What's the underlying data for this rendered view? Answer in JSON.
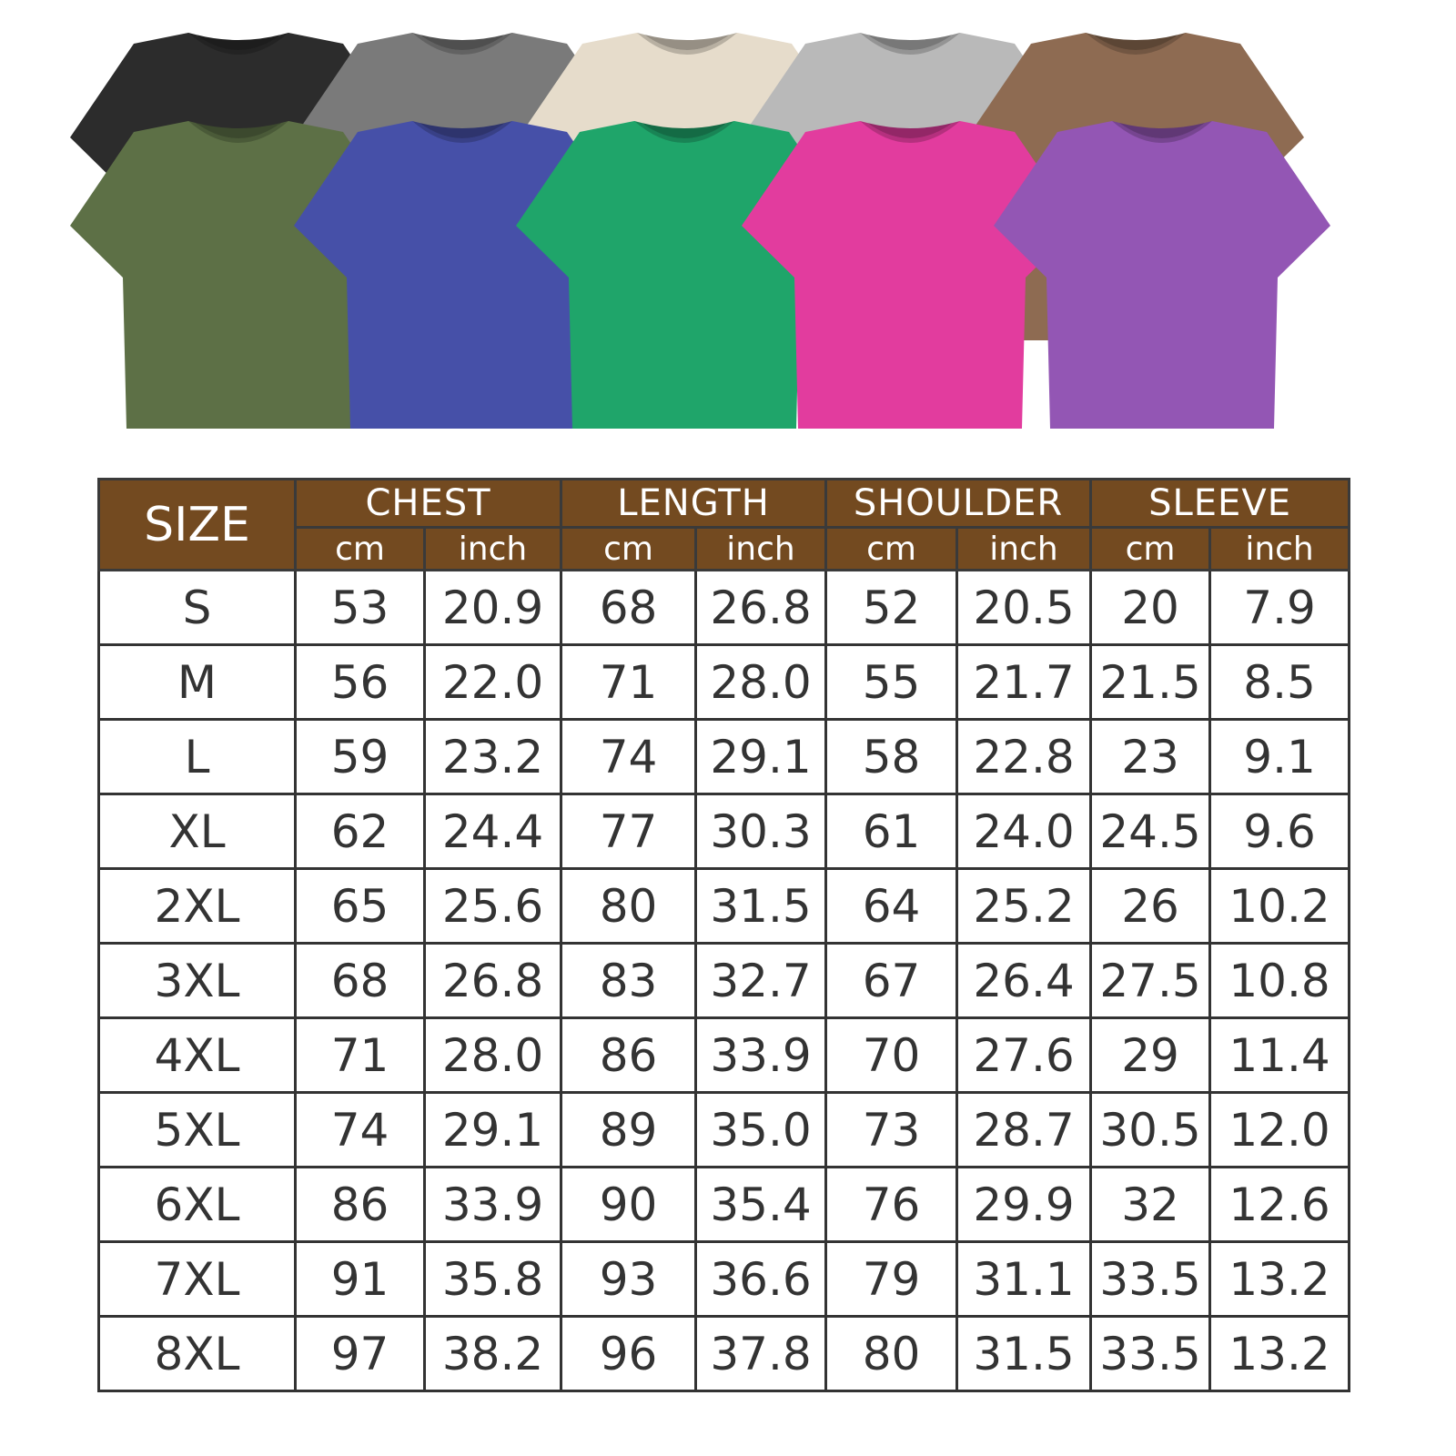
{
  "shirts": {
    "back_row": [
      {
        "color_name": "black",
        "hex": "#2c2c2c"
      },
      {
        "color_name": "dark-grey",
        "hex": "#7a7a7a"
      },
      {
        "color_name": "beige",
        "hex": "#e6dccb"
      },
      {
        "color_name": "light-grey",
        "hex": "#b9b9b9"
      },
      {
        "color_name": "brown",
        "hex": "#8e6b52"
      }
    ],
    "front_row": [
      {
        "color_name": "olive",
        "hex": "#5d7046"
      },
      {
        "color_name": "blue",
        "hex": "#4650a8"
      },
      {
        "color_name": "green",
        "hex": "#1fa56a"
      },
      {
        "color_name": "pink",
        "hex": "#e23c9e"
      },
      {
        "color_name": "purple",
        "hex": "#9356b4"
      }
    ]
  },
  "table": {
    "header_bg": "#734a20",
    "size_label": "SIZE",
    "groups": [
      "CHEST",
      "LENGTH",
      "SHOULDER",
      "SLEEVE"
    ],
    "units": [
      "cm",
      "inch"
    ],
    "rows": [
      [
        "S",
        "53",
        "20.9",
        "68",
        "26.8",
        "52",
        "20.5",
        "20",
        "7.9"
      ],
      [
        "M",
        "56",
        "22.0",
        "71",
        "28.0",
        "55",
        "21.7",
        "21.5",
        "8.5"
      ],
      [
        "L",
        "59",
        "23.2",
        "74",
        "29.1",
        "58",
        "22.8",
        "23",
        "9.1"
      ],
      [
        "XL",
        "62",
        "24.4",
        "77",
        "30.3",
        "61",
        "24.0",
        "24.5",
        "9.6"
      ],
      [
        "2XL",
        "65",
        "25.6",
        "80",
        "31.5",
        "64",
        "25.2",
        "26",
        "10.2"
      ],
      [
        "3XL",
        "68",
        "26.8",
        "83",
        "32.7",
        "67",
        "26.4",
        "27.5",
        "10.8"
      ],
      [
        "4XL",
        "71",
        "28.0",
        "86",
        "33.9",
        "70",
        "27.6",
        "29",
        "11.4"
      ],
      [
        "5XL",
        "74",
        "29.1",
        "89",
        "35.0",
        "73",
        "28.7",
        "30.5",
        "12.0"
      ],
      [
        "6XL",
        "86",
        "33.9",
        "90",
        "35.4",
        "76",
        "29.9",
        "32",
        "12.6"
      ],
      [
        "7XL",
        "91",
        "35.8",
        "93",
        "36.6",
        "79",
        "31.1",
        "33.5",
        "13.2"
      ],
      [
        "8XL",
        "97",
        "38.2",
        "96",
        "37.8",
        "80",
        "31.5",
        "33.5",
        "13.2"
      ]
    ]
  }
}
